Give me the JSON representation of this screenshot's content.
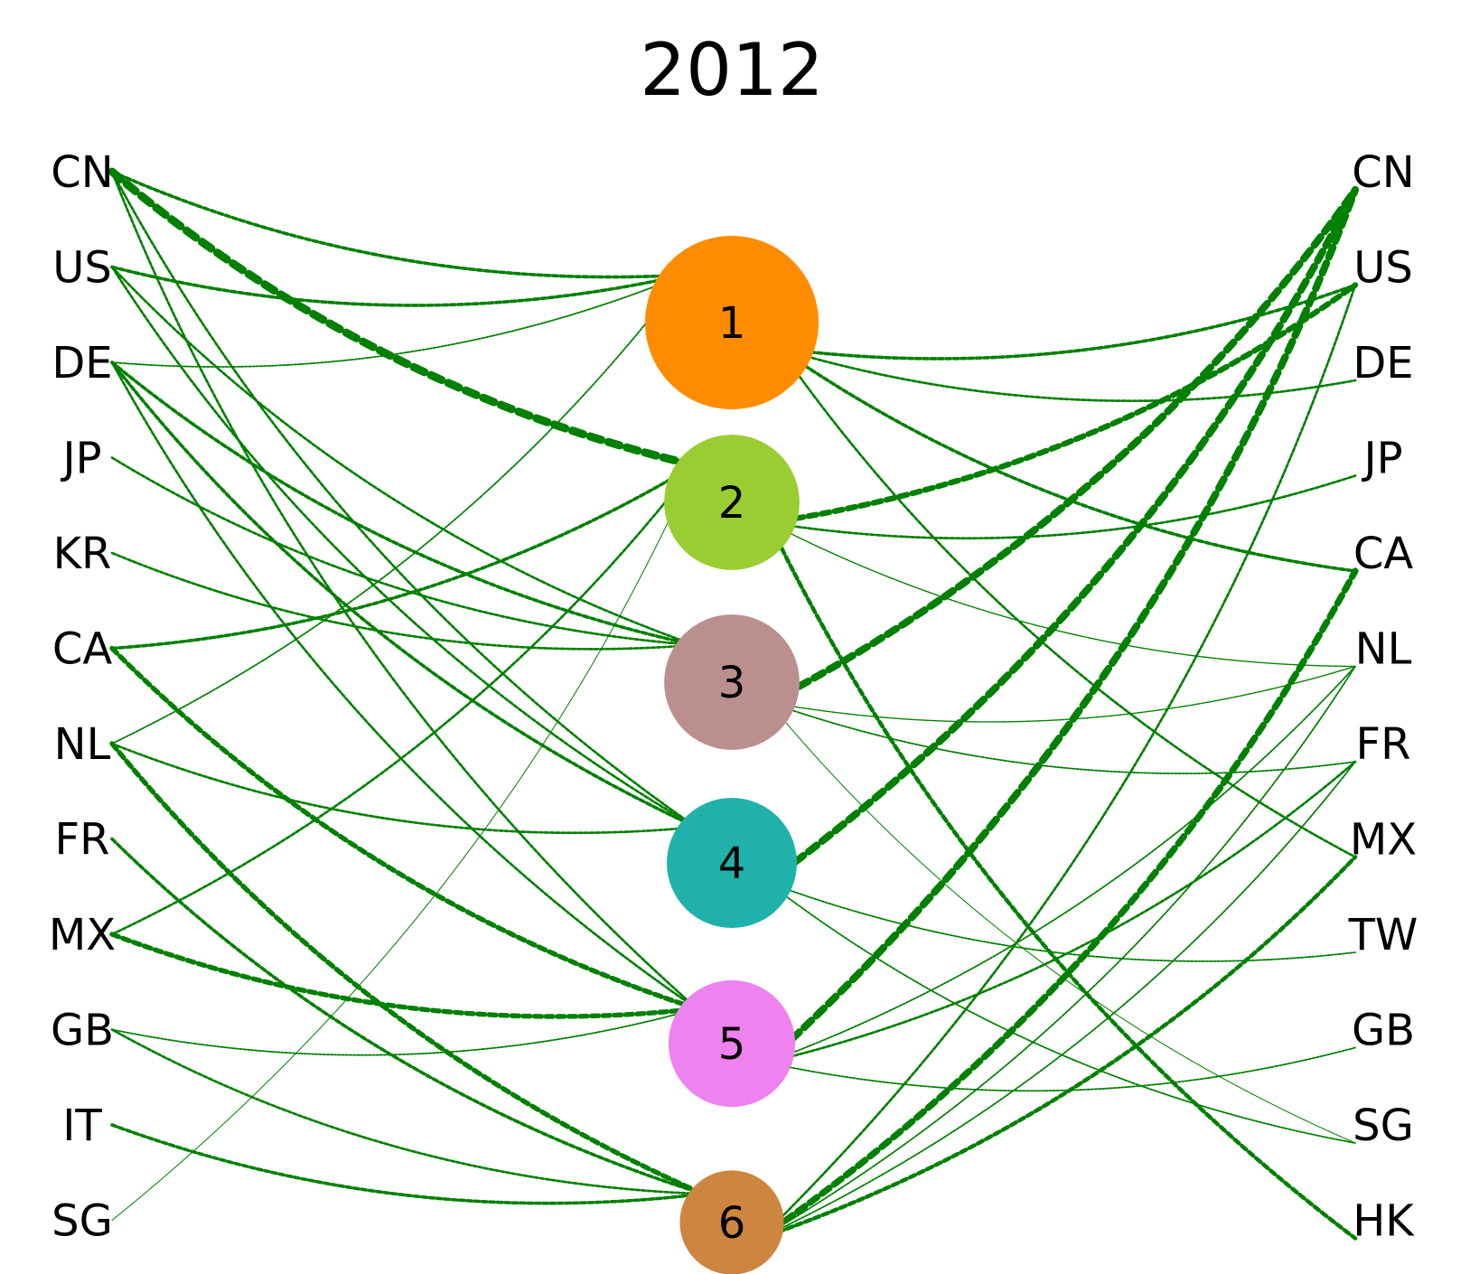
{
  "title": "2012",
  "edge_color": "#008000",
  "left_labels": [
    "CN",
    "US",
    "DE",
    "JP",
    "KR",
    "CA",
    "NL",
    "FR",
    "MX",
    "GB",
    "IT",
    "SG"
  ],
  "right_labels": [
    "CN",
    "US",
    "DE",
    "JP",
    "CA",
    "NL",
    "FR",
    "MX",
    "TW",
    "GB",
    "SG",
    "HK"
  ],
  "clusters": [
    {
      "id": "1",
      "label": "1",
      "color": "#ff8c00",
      "size": 1.0
    },
    {
      "id": "2",
      "label": "2",
      "color": "#9acd32",
      "size": 0.78
    },
    {
      "id": "3",
      "label": "3",
      "color": "#bc8f8f",
      "size": 0.78
    },
    {
      "id": "4",
      "label": "4",
      "color": "#20b2aa",
      "size": 0.75
    },
    {
      "id": "5",
      "label": "5",
      "color": "#ee82ee",
      "size": 0.73
    },
    {
      "id": "6",
      "label": "6",
      "color": "#cd853f",
      "size": 0.6
    }
  ],
  "left_edges": [
    {
      "from": "CN",
      "to": "1",
      "weight": 2
    },
    {
      "from": "CN",
      "to": "2",
      "weight": 5
    },
    {
      "from": "CN",
      "to": "4",
      "weight": 1.5
    },
    {
      "from": "CN",
      "to": "5",
      "weight": 1.5
    },
    {
      "from": "US",
      "to": "1",
      "weight": 2
    },
    {
      "from": "US",
      "to": "3",
      "weight": 1.5
    },
    {
      "from": "US",
      "to": "4",
      "weight": 1.5
    },
    {
      "from": "DE",
      "to": "1",
      "weight": 1
    },
    {
      "from": "DE",
      "to": "3",
      "weight": 2
    },
    {
      "from": "DE",
      "to": "4",
      "weight": 2
    },
    {
      "from": "DE",
      "to": "5",
      "weight": 1.5
    },
    {
      "from": "JP",
      "to": "3",
      "weight": 1.5
    },
    {
      "from": "KR",
      "to": "3",
      "weight": 1.5
    },
    {
      "from": "CA",
      "to": "2",
      "weight": 2
    },
    {
      "from": "CA",
      "to": "5",
      "weight": 3
    },
    {
      "from": "NL",
      "to": "1",
      "weight": 1
    },
    {
      "from": "NL",
      "to": "4",
      "weight": 1.5
    },
    {
      "from": "NL",
      "to": "6",
      "weight": 3
    },
    {
      "from": "FR",
      "to": "6",
      "weight": 2
    },
    {
      "from": "MX",
      "to": "2",
      "weight": 1.5
    },
    {
      "from": "MX",
      "to": "5",
      "weight": 3
    },
    {
      "from": "GB",
      "to": "5",
      "weight": 1
    },
    {
      "from": "GB",
      "to": "6",
      "weight": 1.5
    },
    {
      "from": "IT",
      "to": "6",
      "weight": 2
    },
    {
      "from": "SG",
      "to": "2",
      "weight": 0.6
    }
  ],
  "right_edges": [
    {
      "from": "1",
      "to": "US",
      "weight": 2
    },
    {
      "from": "1",
      "to": "DE",
      "weight": 1.5
    },
    {
      "from": "1",
      "to": "CA",
      "weight": 2
    },
    {
      "from": "1",
      "to": "MX",
      "weight": 1.5
    },
    {
      "from": "2",
      "to": "US",
      "weight": 3.5
    },
    {
      "from": "2",
      "to": "JP",
      "weight": 1.5
    },
    {
      "from": "2",
      "to": "NL",
      "weight": 0.8
    },
    {
      "from": "2",
      "to": "HK",
      "weight": 2.5
    },
    {
      "from": "3",
      "to": "CN",
      "weight": 4.5
    },
    {
      "from": "3",
      "to": "NL",
      "weight": 0.8
    },
    {
      "from": "3",
      "to": "FR",
      "weight": 1
    },
    {
      "from": "3",
      "to": "SG",
      "weight": 0.6
    },
    {
      "from": "4",
      "to": "CN",
      "weight": 4.5
    },
    {
      "from": "4",
      "to": "TW",
      "weight": 1
    },
    {
      "from": "4",
      "to": "SG",
      "weight": 1
    },
    {
      "from": "5",
      "to": "CN",
      "weight": 4.5
    },
    {
      "from": "5",
      "to": "NL",
      "weight": 1
    },
    {
      "from": "5",
      "to": "FR",
      "weight": 1.5
    },
    {
      "from": "5",
      "to": "GB",
      "weight": 1
    },
    {
      "from": "6",
      "to": "US",
      "weight": 1.5
    },
    {
      "from": "6",
      "to": "CA",
      "weight": 4
    },
    {
      "from": "6",
      "to": "NL",
      "weight": 1
    },
    {
      "from": "6",
      "to": "FR",
      "weight": 1
    },
    {
      "from": "6",
      "to": "MX",
      "weight": 2.5
    }
  ]
}
